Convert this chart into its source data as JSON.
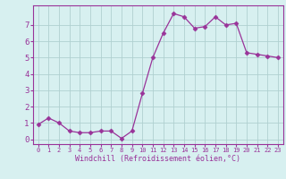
{
  "x": [
    0,
    1,
    2,
    3,
    4,
    5,
    6,
    7,
    8,
    9,
    10,
    11,
    12,
    13,
    14,
    15,
    16,
    17,
    18,
    19,
    20,
    21,
    22,
    23
  ],
  "y": [
    0.9,
    1.3,
    1.0,
    0.5,
    0.4,
    0.4,
    0.5,
    0.5,
    0.05,
    0.5,
    2.8,
    5.0,
    6.5,
    7.7,
    7.5,
    6.8,
    6.9,
    7.5,
    7.0,
    7.1,
    5.3,
    5.2,
    5.1,
    5.0
  ],
  "line_color": "#993399",
  "marker": "D",
  "marker_size": 2.5,
  "bg_color": "#d7f0f0",
  "grid_color": "#b0d0d0",
  "xlabel": "Windchill (Refroidissement éolien,°C)",
  "xlabel_color": "#993399",
  "tick_color": "#993399",
  "spine_color": "#993399",
  "ylim": [
    -0.3,
    8.2
  ],
  "xlim": [
    -0.5,
    23.5
  ],
  "yticks": [
    0,
    1,
    2,
    3,
    4,
    5,
    6,
    7
  ],
  "xticks": [
    0,
    1,
    2,
    3,
    4,
    5,
    6,
    7,
    8,
    9,
    10,
    11,
    12,
    13,
    14,
    15,
    16,
    17,
    18,
    19,
    20,
    21,
    22,
    23
  ]
}
